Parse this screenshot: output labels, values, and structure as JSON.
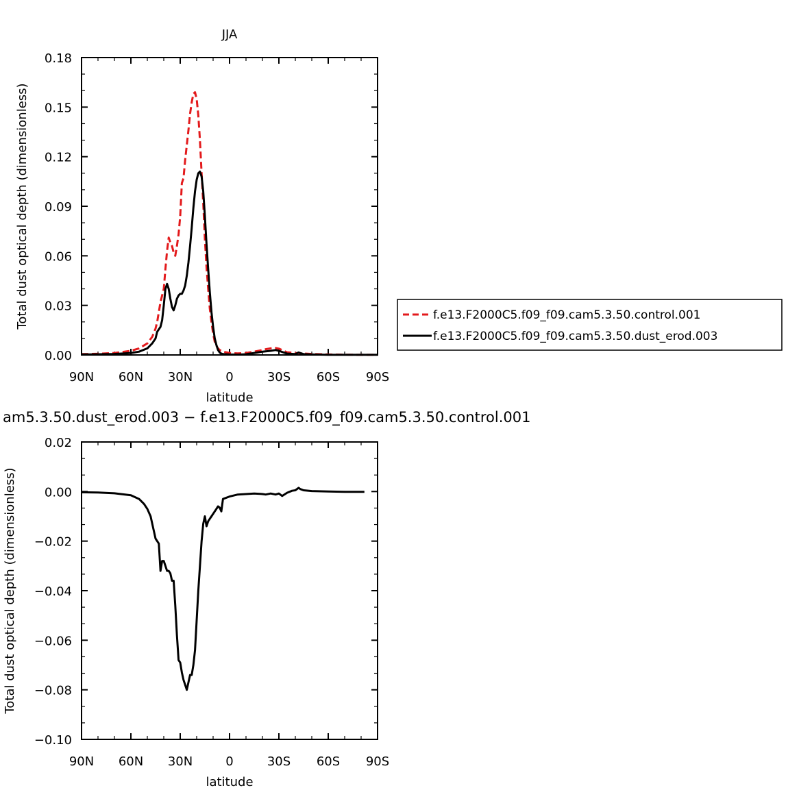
{
  "chart_data": [
    {
      "type": "line",
      "title": "JJA",
      "xlabel": "latitude",
      "ylabel": "Total dust optical depth (dimensionless)",
      "xlim": [
        90,
        -90
      ],
      "ylim": [
        0,
        0.18
      ],
      "x_ticks": [
        "90N",
        "60N",
        "30N",
        "0",
        "30S",
        "60S",
        "90S"
      ],
      "y_ticks": [
        "0.00",
        "0.03",
        "0.06",
        "0.09",
        "0.12",
        "0.15",
        "0.18"
      ],
      "legend_position": "right",
      "series": [
        {
          "name": "f.e13.F2000C5.f09_f09.cam5.3.50.control.001",
          "color": "#e31a1c",
          "style": "dashed",
          "x": [
            90,
            80,
            70,
            60,
            55,
            50,
            47,
            45,
            44,
            42,
            41,
            40,
            39,
            38,
            37,
            36,
            35,
            34,
            33,
            32,
            31,
            30,
            29,
            28,
            27,
            26,
            25,
            24,
            23,
            22,
            21,
            20,
            19,
            18,
            17,
            16,
            15,
            14,
            13,
            12,
            11,
            10,
            9,
            8,
            7,
            6,
            5,
            4,
            0,
            -5,
            -10,
            -15,
            -20,
            -22,
            -25,
            -28,
            -30,
            -33,
            -35,
            -40,
            -45,
            -50,
            -60,
            -70,
            -80,
            -90
          ],
          "y": [
            0.0005,
            0.0007,
            0.0012,
            0.0025,
            0.004,
            0.007,
            0.011,
            0.016,
            0.02,
            0.032,
            0.036,
            0.04,
            0.052,
            0.063,
            0.071,
            0.068,
            0.066,
            0.062,
            0.06,
            0.066,
            0.073,
            0.084,
            0.104,
            0.107,
            0.118,
            0.127,
            0.136,
            0.146,
            0.153,
            0.158,
            0.159,
            0.155,
            0.145,
            0.13,
            0.11,
            0.092,
            0.07,
            0.053,
            0.04,
            0.028,
            0.02,
            0.013,
            0.008,
            0.0055,
            0.004,
            0.003,
            0.0025,
            0.002,
            0.0012,
            0.0009,
            0.0012,
            0.002,
            0.003,
            0.0035,
            0.004,
            0.0042,
            0.0038,
            0.0025,
            0.0016,
            0.0012,
            0.0009,
            0.0006,
            0.0003,
            0.0002,
            0.0001,
            0.0001
          ]
        },
        {
          "name": "f.e13.F2000C5.f09_f09.cam5.3.50.dust_erod.003",
          "color": "#000000",
          "style": "solid",
          "x": [
            90,
            80,
            70,
            60,
            55,
            50,
            47,
            45,
            44,
            42,
            41,
            40,
            39,
            38,
            37,
            36,
            35,
            34,
            33,
            32,
            31,
            30,
            29,
            28,
            27,
            26,
            25,
            24,
            23,
            22,
            21,
            20,
            19,
            18,
            17,
            16,
            15,
            14,
            13,
            12,
            11,
            10,
            9,
            8,
            7,
            6,
            5,
            4,
            0,
            -5,
            -10,
            -15,
            -20,
            -25,
            -28,
            -30,
            -33,
            -35,
            -40,
            -42,
            -45,
            -50,
            -60,
            -70,
            -80,
            -90
          ],
          "y": [
            0.0003,
            0.0004,
            0.0006,
            0.0012,
            0.002,
            0.004,
            0.007,
            0.01,
            0.014,
            0.017,
            0.021,
            0.03,
            0.04,
            0.043,
            0.04,
            0.034,
            0.029,
            0.027,
            0.03,
            0.034,
            0.036,
            0.037,
            0.037,
            0.039,
            0.042,
            0.048,
            0.056,
            0.066,
            0.077,
            0.089,
            0.099,
            0.106,
            0.11,
            0.111,
            0.108,
            0.099,
            0.084,
            0.067,
            0.052,
            0.038,
            0.026,
            0.017,
            0.01,
            0.006,
            0.003,
            0.0015,
            0.0008,
            0.0005,
            0.0003,
            0.0002,
            0.0004,
            0.0012,
            0.002,
            0.0025,
            0.003,
            0.0025,
            0.0015,
            0.0008,
            0.0005,
            0.0015,
            0.0005,
            0.0003,
            0.0001,
            0.0001,
            0.0001,
            0.0001
          ]
        }
      ]
    },
    {
      "type": "line",
      "title": "am5.3.50.dust_erod.003 − f.e13.F2000C5.f09_f09.cam5.3.50.control.001",
      "xlabel": "latitude",
      "ylabel": "Total dust optical depth (dimensionless)",
      "xlim": [
        90,
        -90
      ],
      "ylim": [
        -0.1,
        0.02
      ],
      "x_ticks": [
        "90N",
        "60N",
        "30N",
        "0",
        "30S",
        "60S",
        "90S"
      ],
      "y_ticks": [
        "−0.10",
        "−0.08",
        "−0.06",
        "−0.04",
        "−0.02",
        "0.00",
        "0.02"
      ],
      "series": [
        {
          "color": "#000000",
          "x": [
            90,
            80,
            70,
            60,
            55,
            52,
            50,
            48,
            47,
            46,
            45,
            44,
            43,
            42,
            41,
            40,
            39,
            38,
            37,
            36,
            35,
            34,
            33,
            32,
            31,
            30,
            29,
            28,
            27,
            26,
            25,
            24,
            23,
            22,
            21,
            20,
            19,
            18,
            17,
            16,
            15,
            14,
            13,
            12,
            11,
            10,
            9,
            8,
            7,
            6,
            5,
            4,
            0,
            -5,
            -10,
            -15,
            -20,
            -22,
            -25,
            -28,
            -30,
            -32,
            -35,
            -38,
            -40,
            -42,
            -43,
            -45,
            -50,
            -60,
            -70,
            -80,
            -82
          ],
          "y": [
            -0.0003,
            -0.0004,
            -0.0007,
            -0.0015,
            -0.003,
            -0.005,
            -0.007,
            -0.01,
            -0.013,
            -0.016,
            -0.019,
            -0.02,
            -0.021,
            -0.032,
            -0.028,
            -0.028,
            -0.03,
            -0.032,
            -0.032,
            -0.033,
            -0.036,
            -0.036,
            -0.046,
            -0.058,
            -0.068,
            -0.069,
            -0.073,
            -0.076,
            -0.078,
            -0.08,
            -0.077,
            -0.074,
            -0.074,
            -0.07,
            -0.064,
            -0.052,
            -0.04,
            -0.03,
            -0.02,
            -0.013,
            -0.01,
            -0.014,
            -0.012,
            -0.011,
            -0.01,
            -0.009,
            -0.008,
            -0.007,
            -0.006,
            -0.0065,
            -0.008,
            -0.003,
            -0.002,
            -0.0012,
            -0.001,
            -0.0008,
            -0.001,
            -0.0012,
            -0.0008,
            -0.0012,
            -0.0008,
            -0.0018,
            -0.0005,
            0.0003,
            0.0005,
            0.0015,
            0.001,
            0.0005,
            0.0002,
            0.0,
            -0.0001,
            -0.0001,
            -0.0001
          ]
        }
      ]
    }
  ]
}
